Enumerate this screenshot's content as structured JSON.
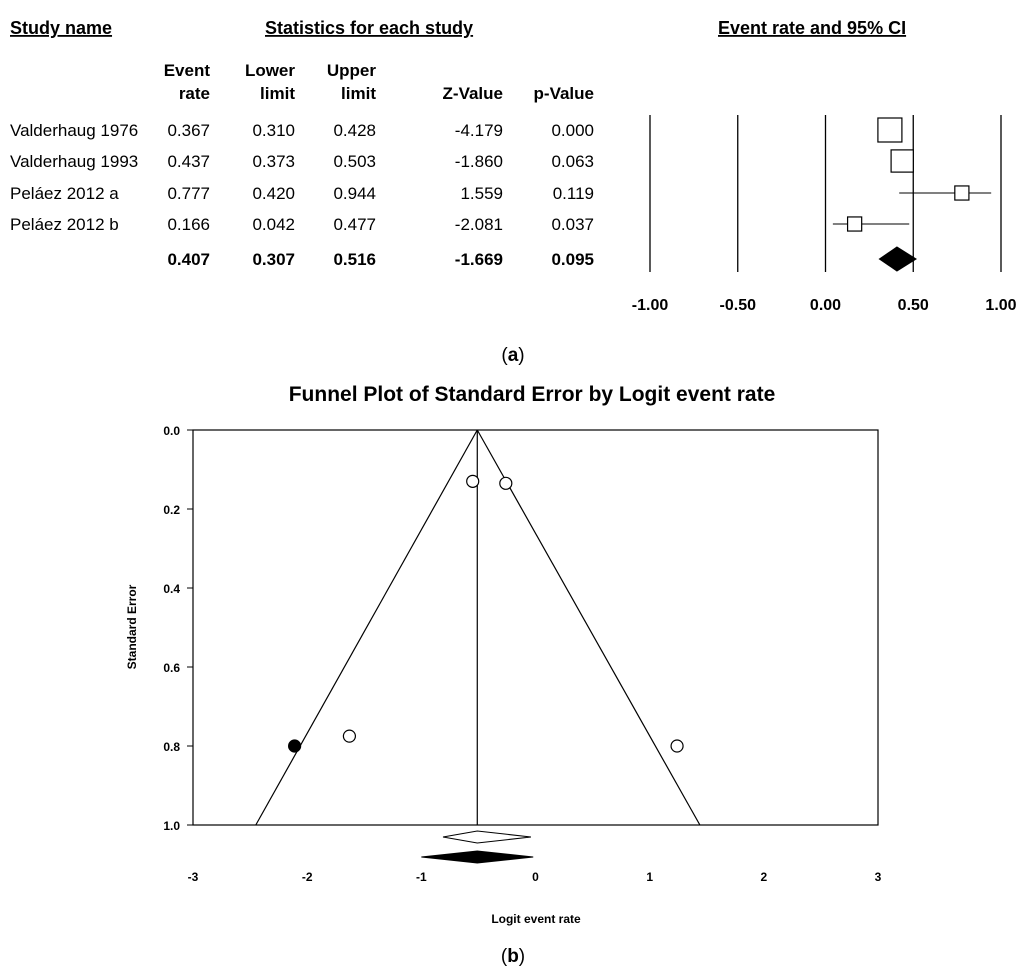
{
  "chart_data": [
    {
      "type": "forest",
      "title": "Event rate and 95% CI",
      "headers": {
        "study": "Study name",
        "stats": "Statistics for each study",
        "columns": [
          {
            "line1": "Event",
            "line2": "rate"
          },
          {
            "line1": "Lower",
            "line2": "limit"
          },
          {
            "line1": "Upper",
            "line2": "limit"
          },
          {
            "line1": "",
            "line2": "Z-Value"
          },
          {
            "line1": "",
            "line2": "p-Value"
          }
        ]
      },
      "rows": [
        {
          "name": "Valderhaug 1976",
          "rate": "0.367",
          "lower": "0.310",
          "upper": "0.428",
          "z": "-4.179",
          "p": "0.000",
          "value": 0.367,
          "lo": 0.31,
          "hi": 0.428,
          "weight": 1.0
        },
        {
          "name": "Valderhaug 1993",
          "rate": "0.437",
          "lower": "0.373",
          "upper": "0.503",
          "z": "-1.860",
          "p": "0.063",
          "value": 0.437,
          "lo": 0.373,
          "hi": 0.503,
          "weight": 0.9
        },
        {
          "name": "Peláez 2012 a",
          "rate": "0.777",
          "lower": "0.420",
          "upper": "0.944",
          "z": "1.559",
          "p": "0.119",
          "value": 0.777,
          "lo": 0.42,
          "hi": 0.944,
          "weight": 0.45
        },
        {
          "name": "Peláez 2012 b",
          "rate": "0.166",
          "lower": "0.042",
          "upper": "0.477",
          "z": "-2.081",
          "p": "0.037",
          "value": 0.166,
          "lo": 0.042,
          "hi": 0.477,
          "weight": 0.45
        }
      ],
      "summary": {
        "name": "",
        "rate": "0.407",
        "lower": "0.307",
        "upper": "0.516",
        "z": "-1.669",
        "p": "0.095",
        "value": 0.407,
        "lo": 0.307,
        "hi": 0.516
      },
      "xlim": [
        -1.0,
        1.0
      ],
      "xticks": [
        "-1.00",
        "-0.50",
        "0.00",
        "0.50",
        "1.00"
      ],
      "xtick_values": [
        -1.0,
        -0.5,
        0.0,
        0.5,
        1.0
      ],
      "caption_open": "(",
      "caption_letter": "a",
      "caption_close": ")"
    },
    {
      "type": "scatter",
      "title": "Funnel Plot of Standard Error by Logit event rate",
      "xlabel": "Logit event rate",
      "ylabel": "Standard Error",
      "xlim": [
        -3,
        3
      ],
      "ylim": [
        0.0,
        1.0
      ],
      "y_inverted": true,
      "xticks": [
        "-3",
        "-2",
        "-1",
        "0",
        "1",
        "2",
        "3"
      ],
      "xtick_values": [
        -3,
        -2,
        -1,
        0,
        1,
        2,
        3
      ],
      "yticks": [
        "0.0",
        "0.2",
        "0.4",
        "0.6",
        "0.8",
        "1.0"
      ],
      "ytick_values": [
        0.0,
        0.2,
        0.4,
        0.6,
        0.8,
        1.0
      ],
      "center_line_x": -0.51,
      "funnel_apex": [
        -0.51,
        0.0
      ],
      "funnel_base": [
        [
          -2.45,
          1.0
        ],
        [
          1.44,
          1.0
        ]
      ],
      "observed_points": [
        {
          "x": -0.55,
          "y": 0.13
        },
        {
          "x": -0.26,
          "y": 0.135
        },
        {
          "x": -1.63,
          "y": 0.775
        },
        {
          "x": 1.24,
          "y": 0.8
        }
      ],
      "imputed_points": [
        {
          "x": -2.11,
          "y": 0.8
        }
      ],
      "observed_diamond": {
        "center": -0.51,
        "lo": -0.81,
        "hi": -0.04
      },
      "imputed_diamond": {
        "center": -0.51,
        "lo": -1.0,
        "hi": -0.02
      },
      "caption_open": "(",
      "caption_letter": "b",
      "caption_close": ")"
    }
  ]
}
